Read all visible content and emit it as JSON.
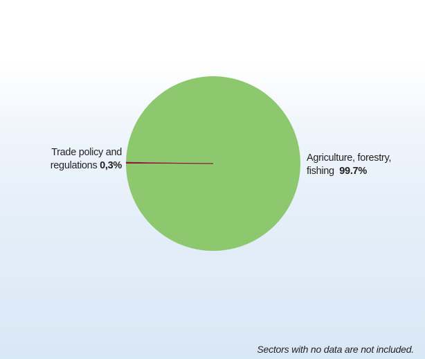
{
  "chart_data": {
    "type": "pie",
    "slices": [
      {
        "label_line1": "Trade policy and",
        "label_line2": "regulations",
        "label": "Trade policy and regulations",
        "value": 0.3,
        "value_text": "0,3%",
        "color": "#8b1a3a"
      },
      {
        "label_line1": "Agriculture, forestry,",
        "label_line2": "fishing",
        "label": "Agriculture, forestry, fishing",
        "value": 99.7,
        "value_text": "99.7%",
        "color": "#8dc86f"
      }
    ]
  },
  "footnote": "Sectors with no data are not included."
}
